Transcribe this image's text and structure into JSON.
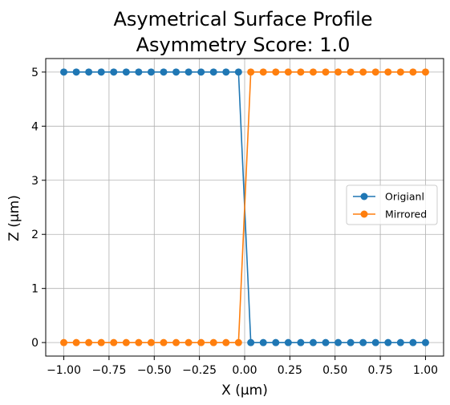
{
  "chart_data": {
    "type": "line",
    "title": "Asymetrical Surface Profile",
    "subtitle": "Asymmetry Score: 1.0",
    "xlabel": "X (µm)",
    "ylabel": "Z (µm)",
    "xlim": [
      -1.1,
      1.1
    ],
    "ylim": [
      -0.25,
      5.25
    ],
    "grid": true,
    "legend_position": "center-right",
    "x_ticks": [
      -1.0,
      -0.75,
      -0.5,
      -0.25,
      0.0,
      0.25,
      0.5,
      0.75,
      1.0
    ],
    "x_tick_labels": [
      "−1.00",
      "−0.75",
      "−0.50",
      "−0.25",
      "0.00",
      "0.25",
      "0.50",
      "0.75",
      "1.00"
    ],
    "y_ticks": [
      0,
      1,
      2,
      3,
      4,
      5
    ],
    "y_tick_labels": [
      "0",
      "1",
      "2",
      "3",
      "4",
      "5"
    ],
    "x": [
      -1.0,
      -0.931,
      -0.862,
      -0.793,
      -0.724,
      -0.655,
      -0.586,
      -0.517,
      -0.448,
      -0.379,
      -0.31,
      -0.241,
      -0.172,
      -0.103,
      -0.034,
      0.034,
      0.103,
      0.172,
      0.241,
      0.31,
      0.379,
      0.448,
      0.517,
      0.586,
      0.655,
      0.724,
      0.793,
      0.862,
      0.931,
      1.0
    ],
    "series": [
      {
        "name": "Origianl",
        "color": "#1f77b4",
        "values": [
          5,
          5,
          5,
          5,
          5,
          5,
          5,
          5,
          5,
          5,
          5,
          5,
          5,
          5,
          5,
          0,
          0,
          0,
          0,
          0,
          0,
          0,
          0,
          0,
          0,
          0,
          0,
          0,
          0,
          0
        ]
      },
      {
        "name": "Mirrored",
        "color": "#ff7f0e",
        "values": [
          0,
          0,
          0,
          0,
          0,
          0,
          0,
          0,
          0,
          0,
          0,
          0,
          0,
          0,
          0,
          5,
          5,
          5,
          5,
          5,
          5,
          5,
          5,
          5,
          5,
          5,
          5,
          5,
          5,
          5
        ]
      }
    ]
  }
}
